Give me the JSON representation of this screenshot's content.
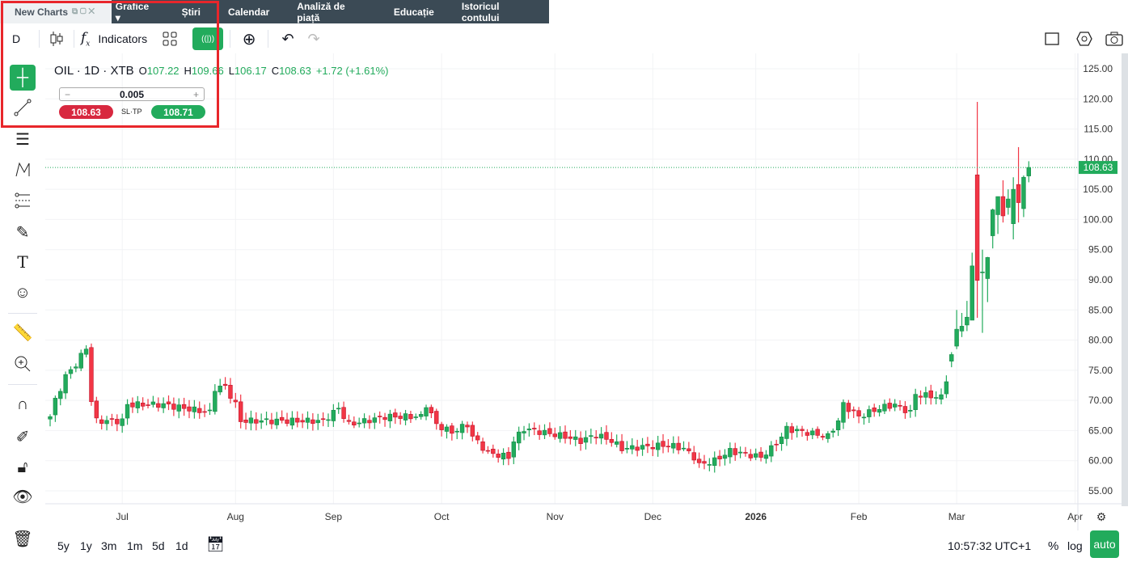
{
  "tabs": {
    "active": "New Charts",
    "items": [
      "Grafice",
      "Știri",
      "Calendar",
      "Analiză de piață",
      "Educație",
      "Istoricul contului"
    ]
  },
  "toolbar": {
    "interval": "D",
    "indicators": "Indicators"
  },
  "legend": {
    "symbol": "OIL · 1D · XTB",
    "o": "107.22",
    "h": "109.66",
    "l": "106.17",
    "c": "108.63",
    "change": "+1.72 (+1.61%)"
  },
  "order": {
    "qty": "0.005",
    "minus": "−",
    "plus": "+",
    "sell": "108.63",
    "sltp": "SL·TP",
    "buy": "108.71"
  },
  "bottom": {
    "ranges": [
      "5y",
      "1y",
      "3m",
      "1m",
      "5d",
      "1d"
    ],
    "time": "10:57:32 UTC+1",
    "percent": "%",
    "log": "log",
    "auto": "auto"
  },
  "colors": {
    "up": "#22ab5c",
    "down": "#f23645",
    "accent": "#22ab5c",
    "highlight": "#e8262b"
  },
  "chart_data": {
    "type": "candlestick",
    "symbol": "OIL",
    "timeframe": "1D",
    "ylim": [
      52,
      127
    ],
    "yticks": [
      "125.00",
      "120.00",
      "115.00",
      "110.00",
      "105.00",
      "100.00",
      "95.00",
      "90.00",
      "85.00",
      "80.00",
      "75.00",
      "70.00",
      "65.00",
      "60.00",
      "55.00"
    ],
    "xticks": [
      {
        "label": "Jul",
        "i": 14
      },
      {
        "label": "Aug",
        "i": 36
      },
      {
        "label": "Sep",
        "i": 55
      },
      {
        "label": "Oct",
        "i": 76
      },
      {
        "label": "Nov",
        "i": 98
      },
      {
        "label": "Dec",
        "i": 117
      },
      {
        "label": "2026",
        "i": 137,
        "bold": true
      },
      {
        "label": "Feb",
        "i": 157
      },
      {
        "label": "Mar",
        "i": 176
      },
      {
        "label": "Apr",
        "i": 199
      }
    ],
    "last_price": "108.63",
    "close_waypoints": [
      [
        0,
        67.3
      ],
      [
        1,
        70
      ],
      [
        3,
        74
      ],
      [
        5,
        76
      ],
      [
        7,
        78.7
      ],
      [
        8,
        70
      ],
      [
        9,
        66.6
      ],
      [
        14,
        66.6
      ],
      [
        15,
        69.3
      ],
      [
        22,
        69.3
      ],
      [
        26,
        68.7
      ],
      [
        31,
        68
      ],
      [
        32,
        72
      ],
      [
        34,
        72.3
      ],
      [
        36,
        69.3
      ],
      [
        37,
        66.6
      ],
      [
        53,
        66.6
      ],
      [
        56,
        68.7
      ],
      [
        58,
        66
      ],
      [
        65,
        67.3
      ],
      [
        72,
        67.3
      ],
      [
        73,
        69.3
      ],
      [
        75,
        66
      ],
      [
        78,
        64.7
      ],
      [
        81,
        66
      ],
      [
        82,
        64
      ],
      [
        85,
        61.3
      ],
      [
        89,
        60.6
      ],
      [
        90,
        63.3
      ],
      [
        92,
        65.3
      ],
      [
        100,
        64
      ],
      [
        103,
        63.3
      ],
      [
        106,
        64.3
      ],
      [
        109,
        63.3
      ],
      [
        111,
        62
      ],
      [
        120,
        62.6
      ],
      [
        123,
        62
      ],
      [
        125,
        60.6
      ],
      [
        126,
        59.3
      ],
      [
        129,
        60
      ],
      [
        132,
        61.6
      ],
      [
        138,
        60.6
      ],
      [
        140,
        62
      ],
      [
        142,
        64
      ],
      [
        143,
        65.3
      ],
      [
        151,
        64
      ],
      [
        153,
        66.6
      ],
      [
        154,
        69.3
      ],
      [
        157,
        67.3
      ],
      [
        161,
        68.7
      ],
      [
        164,
        69.3
      ],
      [
        167,
        68
      ],
      [
        168,
        71
      ],
      [
        173,
        70.5
      ],
      [
        174,
        73.1
      ]
    ],
    "recent_ohlc": [
      [
        76.5,
        78,
        75.5,
        77.6
      ],
      [
        79,
        85,
        78.5,
        81.8
      ],
      [
        81.5,
        84.5,
        80.5,
        82.3
      ],
      [
        82.5,
        86.5,
        81.5,
        83.8
      ],
      [
        83.3,
        94.5,
        83.3,
        92.3
      ],
      [
        107.4,
        119.5,
        83.7,
        89.9
      ],
      [
        91.3,
        95,
        81.2,
        91.3
      ],
      [
        90.2,
        93.8,
        86.3,
        93.7
      ],
      [
        97.3,
        101.8,
        95.2,
        101.6
      ],
      [
        100.8,
        103.8,
        97.6,
        103.8
      ],
      [
        103.8,
        106.5,
        99.5,
        100.6
      ],
      [
        102,
        105,
        100.8,
        103.4
      ],
      [
        99.3,
        107,
        96.7,
        105
      ],
      [
        105.8,
        112,
        99.5,
        102.8
      ],
      [
        101.8,
        107.3,
        100.4,
        107
      ],
      [
        107.22,
        109.66,
        106.17,
        108.63
      ]
    ]
  }
}
